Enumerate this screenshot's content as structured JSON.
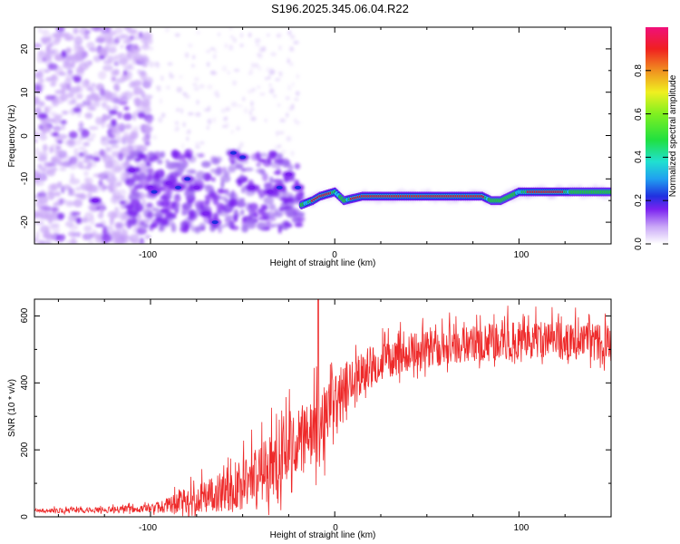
{
  "title": "S196.2025.345.06.04.R22",
  "colors": {
    "snr_line": "#ee2a2a",
    "spec_purple": "#7b22f0",
    "spec_blue": "#2030e0",
    "spec_green": "#20c840",
    "spec_red": "#e01818"
  },
  "colorbar": {
    "label": "Normalized spectral amplitude",
    "ticks": [
      "0.0",
      "0.2",
      "0.4",
      "0.6",
      "0.8"
    ],
    "tick_values": [
      0.0,
      0.2,
      0.4,
      0.6,
      0.8
    ],
    "range": [
      0,
      1
    ]
  },
  "chart_data": [
    {
      "type": "heatmap",
      "name": "spectrogram",
      "xlabel": "Height of straight line (km)",
      "ylabel": "Frequency (Hz)",
      "xlim": [
        -163,
        150
      ],
      "ylim": [
        -25,
        25
      ],
      "xticks": [
        -100,
        0,
        100
      ],
      "xtick_labels": [
        "-100",
        "0",
        "100"
      ],
      "yticks": [
        20,
        10,
        0,
        -10,
        -20
      ],
      "ytick_labels": [
        "20",
        "10",
        "0",
        "-10",
        "-20"
      ],
      "noise_region": {
        "x": [
          -163,
          -100
        ],
        "y": [
          -25,
          25
        ]
      },
      "blobs": [
        {
          "x": -130,
          "y": -15,
          "v": 0.25
        },
        {
          "x": -110,
          "y": -8,
          "v": 0.2
        },
        {
          "x": -100,
          "y": -12,
          "v": 0.2
        },
        {
          "x": -98,
          "y": -13,
          "v": 0.3
        },
        {
          "x": -90,
          "y": -11,
          "v": 0.25
        },
        {
          "x": -85,
          "y": -12,
          "v": 0.3
        },
        {
          "x": -80,
          "y": -10,
          "v": 0.3
        },
        {
          "x": -75,
          "y": -12,
          "v": 0.2
        },
        {
          "x": -70,
          "y": -18,
          "v": 0.2
        },
        {
          "x": -65,
          "y": -20,
          "v": 0.3
        },
        {
          "x": -55,
          "y": -4,
          "v": 0.3
        },
        {
          "x": -50,
          "y": -5,
          "v": 0.3
        },
        {
          "x": -45,
          "y": -12,
          "v": 0.2
        },
        {
          "x": -35,
          "y": -13,
          "v": 0.25
        },
        {
          "x": -30,
          "y": -12,
          "v": 0.3
        },
        {
          "x": -25,
          "y": -9,
          "v": 0.25
        },
        {
          "x": -20,
          "y": -12,
          "v": 0.3
        }
      ],
      "ridge": {
        "x": [
          -18,
          -12,
          -8,
          -4,
          0,
          5,
          10,
          15,
          20,
          30,
          40,
          50,
          60,
          70,
          80,
          85,
          90,
          95,
          100,
          110,
          120,
          130,
          140,
          150
        ],
        "y": [
          -16,
          -15,
          -14,
          -13.5,
          -13,
          -15,
          -14.5,
          -14,
          -14,
          -14,
          -14,
          -14,
          -14,
          -14,
          -14,
          -15,
          -15,
          -14,
          -13,
          -13,
          -13,
          -13,
          -13,
          -13
        ],
        "v": [
          0.35,
          0.7,
          0.85,
          0.8,
          0.6,
          0.3,
          0.9,
          0.95,
          0.98,
          0.98,
          0.95,
          0.98,
          0.97,
          0.98,
          0.9,
          0.3,
          0.35,
          0.3,
          0.5,
          0.95,
          0.98,
          0.3,
          0.3,
          0.3
        ]
      }
    },
    {
      "type": "line",
      "name": "snr",
      "xlabel": "Height of straight line (km)",
      "ylabel": "SNR (10 * v/v)",
      "xlim": [
        -163,
        150
      ],
      "ylim": [
        0,
        650
      ],
      "xticks": [
        -100,
        0,
        100
      ],
      "xtick_labels": [
        "-100",
        "0",
        "100"
      ],
      "yticks": [
        0,
        200,
        400,
        600
      ],
      "ytick_labels": [
        "0",
        "200",
        "400",
        "600"
      ],
      "envelope": {
        "x": [
          -163,
          -130,
          -100,
          -90,
          -80,
          -70,
          -60,
          -50,
          -40,
          -30,
          -20,
          -10,
          -5,
          0,
          5,
          10,
          20,
          30,
          40,
          50,
          60,
          80,
          100,
          120,
          140,
          150
        ],
        "mean": [
          18,
          20,
          25,
          35,
          50,
          60,
          80,
          100,
          130,
          160,
          220,
          250,
          280,
          340,
          380,
          410,
          450,
          470,
          490,
          500,
          510,
          520,
          530,
          525,
          520,
          520
        ],
        "amp": [
          8,
          10,
          15,
          30,
          50,
          60,
          80,
          100,
          120,
          130,
          130,
          140,
          130,
          110,
          100,
          80,
          70,
          70,
          70,
          70,
          70,
          70,
          70,
          70,
          70,
          70
        ]
      },
      "peak": {
        "x": -9,
        "y": 650
      }
    }
  ]
}
